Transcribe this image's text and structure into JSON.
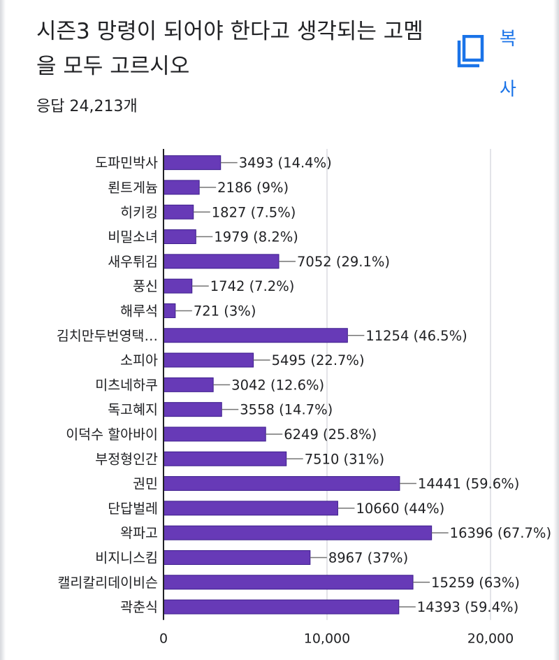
{
  "question": {
    "title": "시즌3 망령이 되어야 한다고 생각되는 고멤을 모두 고르시오",
    "responses": "응답 24,213개"
  },
  "copy_button": {
    "label": "복사",
    "icon": "copy-icon"
  },
  "colors": {
    "bar": "#673ab7",
    "bar_border": "#3c1d8c",
    "accent": "#1a73e8",
    "grid": "#dadce0",
    "axis": "#202124",
    "leader": "#757575"
  },
  "chart_data": {
    "type": "bar",
    "orientation": "horizontal",
    "categories": [
      "도파민박사",
      "뢴트게늄",
      "히키킹",
      "비밀소녀",
      "새우튀김",
      "풍신",
      "해루석",
      "김치만두번영택…",
      "소피아",
      "미츠네하쿠",
      "독고혜지",
      "이덕수 할아바이",
      "부정형인간",
      "권민",
      "단답벌레",
      "왁파고",
      "비지니스킴",
      "캘리칼리데이비슨",
      "곽춘식"
    ],
    "values": [
      3493,
      2186,
      1827,
      1979,
      7052,
      1742,
      721,
      11254,
      5495,
      3042,
      3558,
      6249,
      7510,
      14441,
      10660,
      16396,
      8967,
      15259,
      14393
    ],
    "data_labels": [
      "3493 (14.4%)",
      "2186 (9%)",
      "1827 (7.5%)",
      "1979 (8.2%)",
      "7052 (29.1%)",
      "1742 (7.2%)",
      "721 (3%)",
      "11254 (46.5%)",
      "5495 (22.7%)",
      "3042 (12.6%)",
      "3558 (14.7%)",
      "6249 (25.8%)",
      "7510 (31%)",
      "14441 (59.6%)",
      "10660 (44%)",
      "16396 (67.7%)",
      "8967 (37%)",
      "15259 (63%)",
      "14393 (59.4%)"
    ],
    "xlim": [
      0,
      20000
    ],
    "x_ticks": [
      0,
      10000,
      20000
    ],
    "x_tick_labels": [
      "0",
      "10,000",
      "20,000"
    ],
    "grid": true
  }
}
